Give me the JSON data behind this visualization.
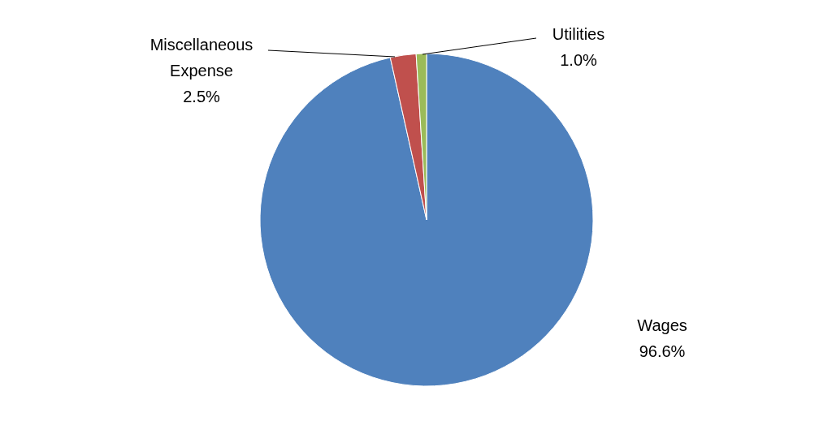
{
  "chart_data": {
    "type": "pie",
    "categories": [
      "Wages",
      "Miscellaneous Expense",
      "Utilities"
    ],
    "values": [
      96.6,
      2.5,
      1.0
    ],
    "colors": [
      "#4f81bd",
      "#c0504d",
      "#9bbb59"
    ],
    "value_labels": [
      "96.6%",
      "2.5%",
      "1.0%"
    ]
  }
}
